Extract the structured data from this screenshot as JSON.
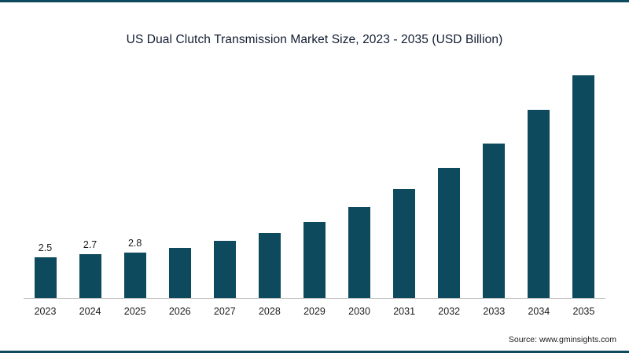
{
  "page": {
    "background_color": "#ffffff",
    "accent_color": "#0d4a5d"
  },
  "chart_data": {
    "type": "bar",
    "title": "US Dual Clutch Transmission Market Size, 2023 - 2035 (USD Billion)",
    "categories": [
      "2023",
      "2024",
      "2025",
      "2026",
      "2027",
      "2028",
      "2029",
      "2030",
      "2031",
      "2032",
      "2033",
      "2034",
      "2035"
    ],
    "values": [
      2.5,
      2.7,
      2.8,
      3.1,
      3.5,
      4.0,
      4.7,
      5.6,
      6.7,
      8.0,
      9.5,
      11.6,
      13.7
    ],
    "data_labels": [
      "2.5",
      "2.7",
      "2.8",
      "",
      "",
      "",
      "",
      "",
      "",
      "",
      "",
      "",
      ""
    ],
    "xlabel": "",
    "ylabel": "",
    "ylim": [
      0,
      14
    ],
    "bar_color": "#0d4a5d",
    "grid": "off",
    "legend": "none",
    "y_axis_visible": false
  },
  "source": {
    "label": "Source: www.gminsights.com"
  }
}
